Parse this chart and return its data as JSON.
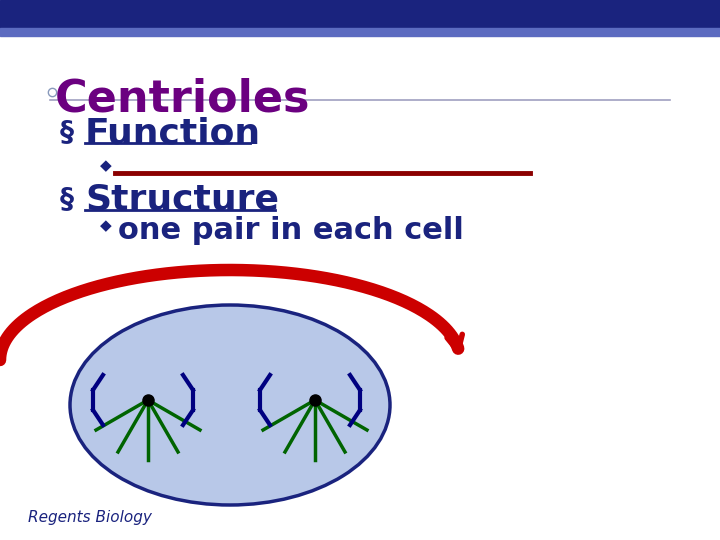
{
  "title": "Centrioles",
  "title_color": "#6B0080",
  "title_fontsize": 32,
  "header_bar_color": "#1a237e",
  "header_bar2_color": "#5c6bc0",
  "bullet1": "Function",
  "bullet2": "Structure",
  "sub_bullet2": "one pair in each cell",
  "bullet_color": "#1a237e",
  "bullet_fontsize": 26,
  "sub_bullet_fontsize": 22,
  "underline_color": "#8B0000",
  "diamond_color": "#1a237e",
  "footer": "Regents Biology",
  "footer_color": "#1a237e",
  "footer_fontsize": 11,
  "bg_color": "#ffffff",
  "cell_fill": "#b8c8e8",
  "cell_edge": "#1a237e",
  "green_line_color": "#006400",
  "red_arrow_color": "#cc0000",
  "dark_navy": "#000080"
}
